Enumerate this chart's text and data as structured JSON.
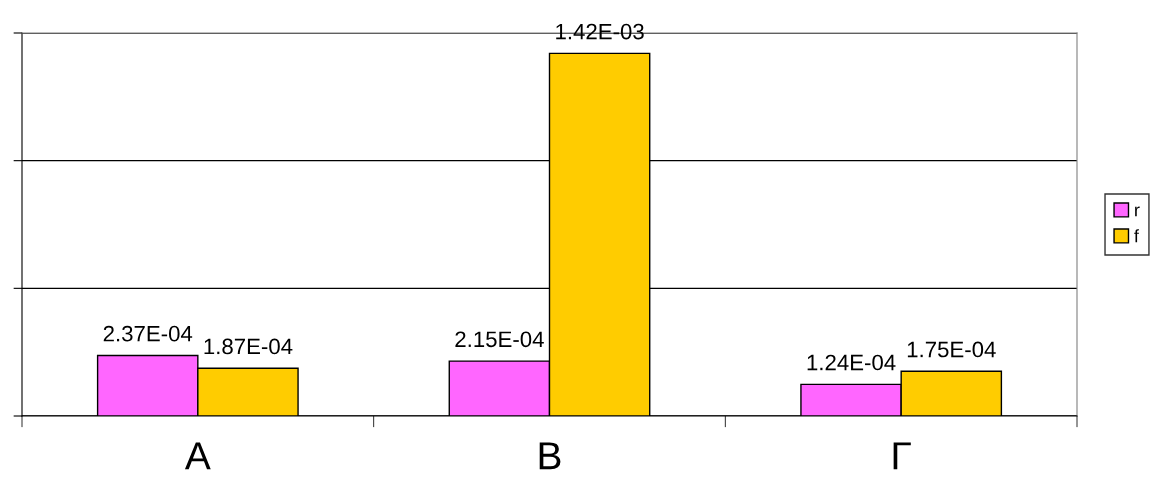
{
  "chart_data": {
    "type": "bar",
    "categories": [
      "Α",
      "Β",
      "Γ"
    ],
    "series": [
      {
        "name": "r",
        "color": "#ff66ff",
        "values": [
          0.000237,
          0.000215,
          0.000124
        ],
        "value_labels": [
          "2.37E-04",
          "2.15E-04",
          "1.24E-04"
        ]
      },
      {
        "name": "f",
        "color": "#ffcc00",
        "values": [
          0.000187,
          0.00142,
          0.000175
        ],
        "value_labels": [
          "1.87E-04",
          "1.42E-03",
          "1.75E-04"
        ]
      }
    ],
    "ylim": [
      0,
      0.0015
    ],
    "yticks": [
      {
        "value": 0,
        "label": null
      },
      {
        "value": 0.0005,
        "label": null
      },
      {
        "value": 0.001,
        "label": null
      },
      {
        "value": 0.0015,
        "label": null
      }
    ],
    "tick_labels": "x",
    "grid": "y",
    "legend": "right"
  }
}
